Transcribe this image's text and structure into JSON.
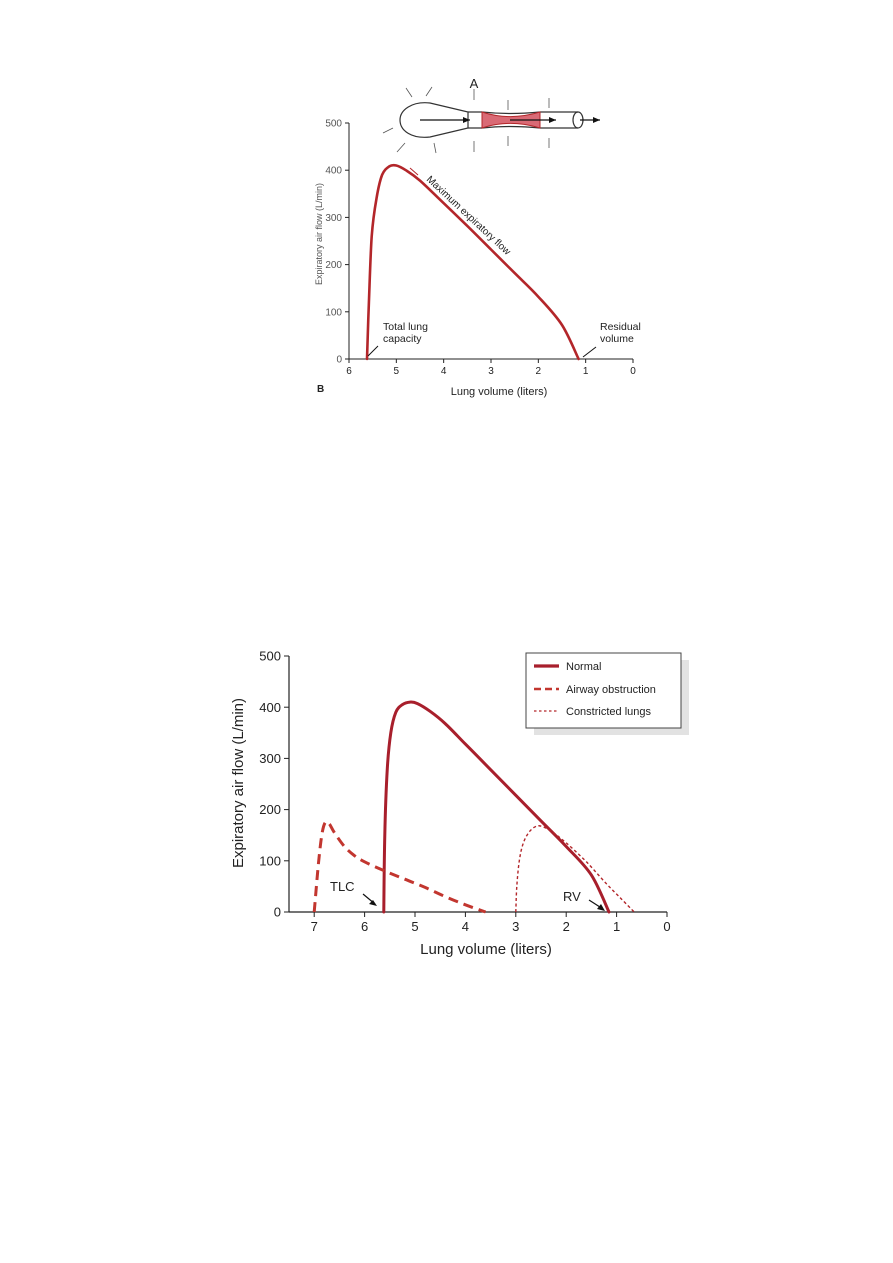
{
  "chart_data": [
    {
      "type": "line",
      "panel_label": "B",
      "inset_label": "A",
      "xlabel": "Lung volume (liters)",
      "ylabel": "Expiratory air flow (L/min)",
      "xlim": [
        6,
        0
      ],
      "ylim": [
        0,
        500
      ],
      "xticks": [
        "6",
        "5",
        "4",
        "3",
        "2",
        "1",
        "0"
      ],
      "yticks": [
        "0",
        "100",
        "200",
        "300",
        "400",
        "500"
      ],
      "annotations": {
        "curve_label": "Maximum expiratory flow",
        "tlc": "Total lung\ncapacity",
        "rv": "Residual\nvolume"
      },
      "series": [
        {
          "color": "#b3262a",
          "x": [
            5.62,
            5.58,
            5.52,
            5.42,
            5.3,
            5.15,
            5.0,
            4.8,
            4.5,
            4.0,
            3.5,
            3.0,
            2.5,
            2.0,
            1.5,
            1.15
          ],
          "y": [
            0,
            120,
            260,
            340,
            390,
            408,
            410,
            400,
            378,
            330,
            282,
            232,
            182,
            132,
            72,
            0
          ]
        }
      ]
    },
    {
      "type": "line",
      "xlabel": "Lung volume (liters)",
      "ylabel": "Expiratory air flow (L/min)",
      "xlim": [
        7.5,
        0
      ],
      "ylim": [
        0,
        500
      ],
      "xticks": [
        "7",
        "6",
        "5",
        "4",
        "3",
        "2",
        "1",
        "0"
      ],
      "yticks": [
        "0",
        "100",
        "200",
        "300",
        "400",
        "500"
      ],
      "legend_position": "top-right",
      "annotations": {
        "tlc": "TLC",
        "rv": "RV"
      },
      "series": [
        {
          "name": "Normal",
          "style": "solid",
          "color": "#a81f2c",
          "x": [
            5.62,
            5.6,
            5.55,
            5.48,
            5.38,
            5.25,
            5.1,
            4.95,
            4.7,
            4.4,
            4.0,
            3.5,
            3.0,
            2.5,
            2.0,
            1.5,
            1.15
          ],
          "y": [
            0,
            150,
            280,
            350,
            390,
            405,
            410,
            407,
            392,
            368,
            328,
            278,
            228,
            178,
            128,
            72,
            0
          ]
        },
        {
          "name": "Airway obstruction",
          "style": "dashed",
          "color": "#c2362f",
          "x": [
            7.0,
            6.92,
            6.85,
            6.78,
            6.7,
            6.6,
            6.4,
            6.2,
            6.0,
            5.6,
            5.2,
            4.8,
            4.4,
            4.0,
            3.6
          ],
          "y": [
            0,
            90,
            150,
            175,
            172,
            155,
            128,
            110,
            98,
            80,
            64,
            48,
            30,
            14,
            0
          ]
        },
        {
          "name": "Constricted lungs",
          "style": "dotted",
          "color": "#b3262a",
          "x": [
            3.0,
            2.98,
            2.93,
            2.85,
            2.72,
            2.58,
            2.45,
            2.3,
            2.0,
            1.6,
            1.2,
            0.9,
            0.65
          ],
          "y": [
            0,
            50,
            100,
            135,
            158,
            168,
            166,
            158,
            135,
            98,
            55,
            25,
            0
          ]
        }
      ]
    }
  ]
}
